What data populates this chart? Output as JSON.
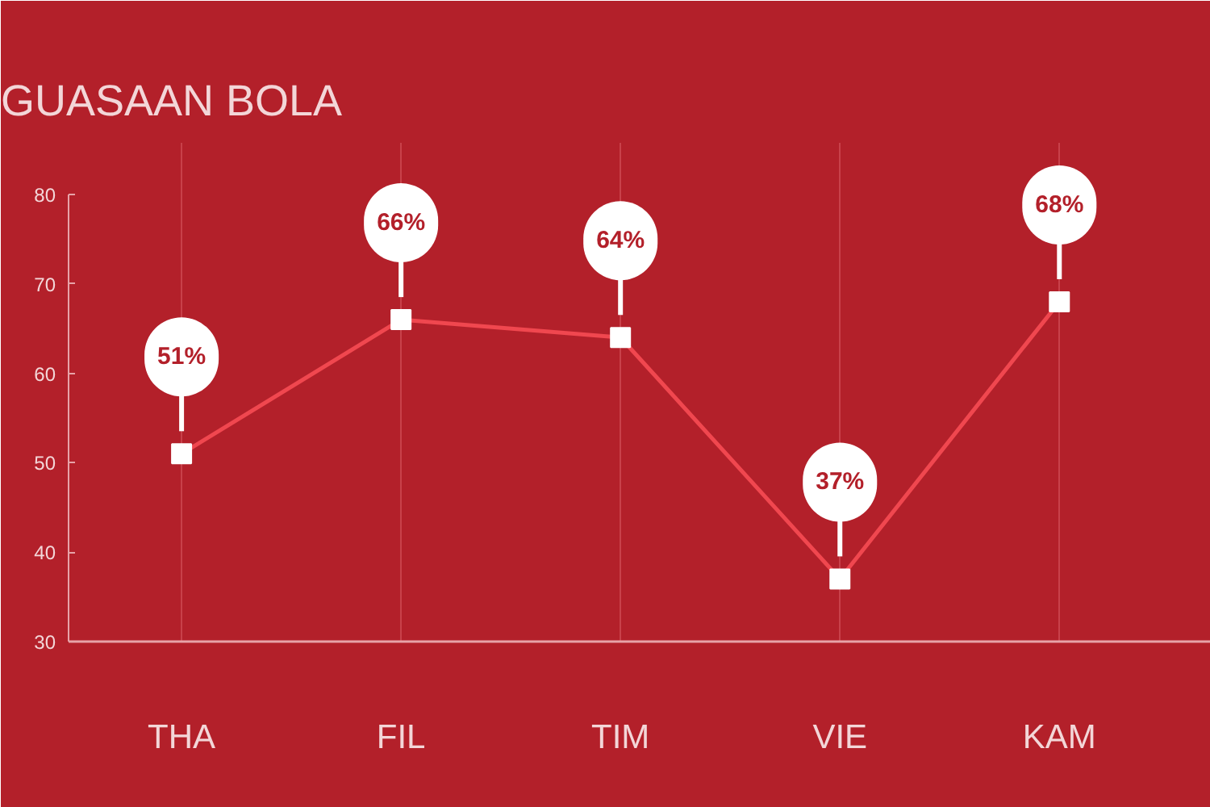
{
  "chart_data": {
    "type": "line",
    "title": "GUASAAN BOLA",
    "categories": [
      "THA",
      "FIL",
      "TIM",
      "VIE",
      "KAM"
    ],
    "series": [
      {
        "color": "#f0474f",
        "values": [
          51,
          66,
          64,
          37,
          68
        ],
        "value_labels": [
          "51%",
          "66%",
          "64%",
          "37%",
          "68%"
        ]
      }
    ],
    "ylim": [
      30,
      80
    ],
    "yticks": [
      30,
      40,
      50,
      60,
      70,
      80
    ],
    "grid": "x",
    "marker": "square",
    "line_style": "solid"
  }
}
